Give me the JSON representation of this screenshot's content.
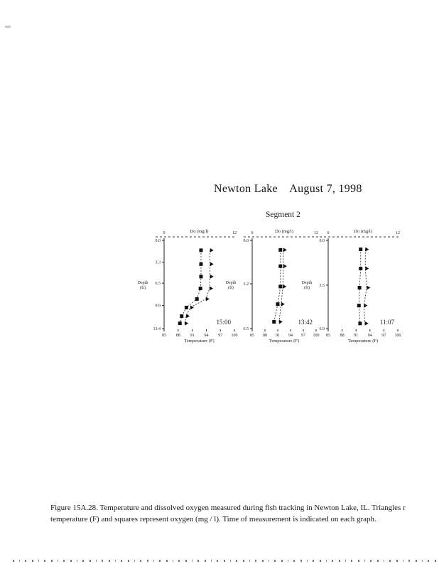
{
  "page": {
    "title": "Newton Lake    August 7, 1998",
    "subtitle": "Segment 2",
    "ink_color": "#1c1c1c",
    "caption_line1": "Figure 15A.28. Temperature and dissolved oxygen measured during fish tracking in Newton Lake, IL.  Triangles r",
    "caption_line2": "temperature (F)  and squares represent oxygen (mg / l). Time of measurement is indicated on each graph."
  },
  "chart_data": [
    {
      "type": "scatter",
      "time_label": "15:00",
      "top_axis": {
        "label": "Do (mg/l)",
        "range": [
          0,
          12
        ],
        "ticks": [
          "0",
          "12"
        ]
      },
      "bottom_axis": {
        "label": "Temperature (F)",
        "range": [
          85,
          100
        ],
        "ticks": [
          "85",
          "88",
          "91",
          "94",
          "97",
          "100"
        ]
      },
      "left_axis": {
        "label": "Depth (ft)",
        "unit": "(ft)",
        "range": [
          0,
          13.4
        ],
        "ticks": [
          "0.0",
          "3.3",
          "6.5",
          "9.9",
          "13.4"
        ]
      },
      "series": [
        {
          "name": "oxygen",
          "marker": "square",
          "axis": "top",
          "points": [
            [
              1.5,
              6.3
            ],
            [
              3.6,
              6.3
            ],
            [
              5.5,
              6.3
            ],
            [
              7.3,
              6.2
            ],
            [
              8.9,
              5.6
            ],
            [
              10.2,
              3.8
            ],
            [
              11.5,
              3.0
            ],
            [
              12.6,
              2.7
            ]
          ]
        },
        {
          "name": "temperature",
          "marker": "triangle",
          "axis": "bottom",
          "points": [
            [
              1.5,
              94.8
            ],
            [
              3.6,
              94.8
            ],
            [
              5.5,
              94.8
            ],
            [
              7.3,
              94.7
            ],
            [
              8.9,
              93.9
            ],
            [
              10.2,
              90.6
            ],
            [
              11.5,
              89.7
            ],
            [
              12.6,
              89.4
            ]
          ]
        }
      ]
    },
    {
      "type": "scatter",
      "time_label": "13:42",
      "top_axis": {
        "label": "Do (mg/l)",
        "range": [
          0,
          12
        ],
        "ticks": [
          "0",
          "12"
        ]
      },
      "bottom_axis": {
        "label": "Temperature (F)",
        "range": [
          85,
          100
        ],
        "ticks": [
          "85",
          "88",
          "91",
          "94",
          "97",
          "100"
        ]
      },
      "left_axis": {
        "label": "Depth (ft)",
        "unit": "(ft)",
        "range": [
          0,
          6.5
        ],
        "ticks": [
          "0.0",
          "3.2",
          "6.5"
        ]
      },
      "series": [
        {
          "name": "oxygen",
          "marker": "square",
          "axis": "top",
          "points": [
            [
              0.7,
              5.3
            ],
            [
              1.9,
              5.3
            ],
            [
              3.4,
              5.3
            ],
            [
              4.7,
              4.8
            ],
            [
              6.0,
              4.1
            ]
          ]
        },
        {
          "name": "temperature",
          "marker": "triangle",
          "axis": "bottom",
          "points": [
            [
              0.7,
              92.3
            ],
            [
              1.9,
              92.3
            ],
            [
              3.4,
              92.2
            ],
            [
              4.7,
              91.8
            ],
            [
              6.0,
              91.3
            ]
          ]
        }
      ]
    },
    {
      "type": "scatter",
      "time_label": "11:07",
      "top_axis": {
        "label": "Do (mg/l)",
        "range": [
          0,
          12
        ],
        "ticks": [
          "0",
          "12"
        ]
      },
      "bottom_axis": {
        "label": "Temperature (F)",
        "range": [
          85,
          100
        ],
        "ticks": [
          "85",
          "88",
          "91",
          "94",
          "97",
          "100"
        ]
      },
      "left_axis": {
        "label": "Depth (ft)",
        "unit": "(ft)",
        "range": [
          0,
          6.9
        ],
        "ticks": [
          "0.0",
          "3.5",
          "6.9"
        ]
      },
      "series": [
        {
          "name": "oxygen",
          "marker": "square",
          "axis": "top",
          "points": [
            [
              0.7,
              5.6
            ],
            [
              2.2,
              5.6
            ],
            [
              3.7,
              5.4
            ],
            [
              5.1,
              5.3
            ],
            [
              6.5,
              5.5
            ]
          ]
        },
        {
          "name": "temperature",
          "marker": "triangle",
          "axis": "bottom",
          "points": [
            [
              0.7,
              93.0
            ],
            [
              2.2,
              93.0
            ],
            [
              3.7,
              93.3
            ],
            [
              5.1,
              92.7
            ],
            [
              6.5,
              92.9
            ]
          ]
        }
      ]
    }
  ]
}
